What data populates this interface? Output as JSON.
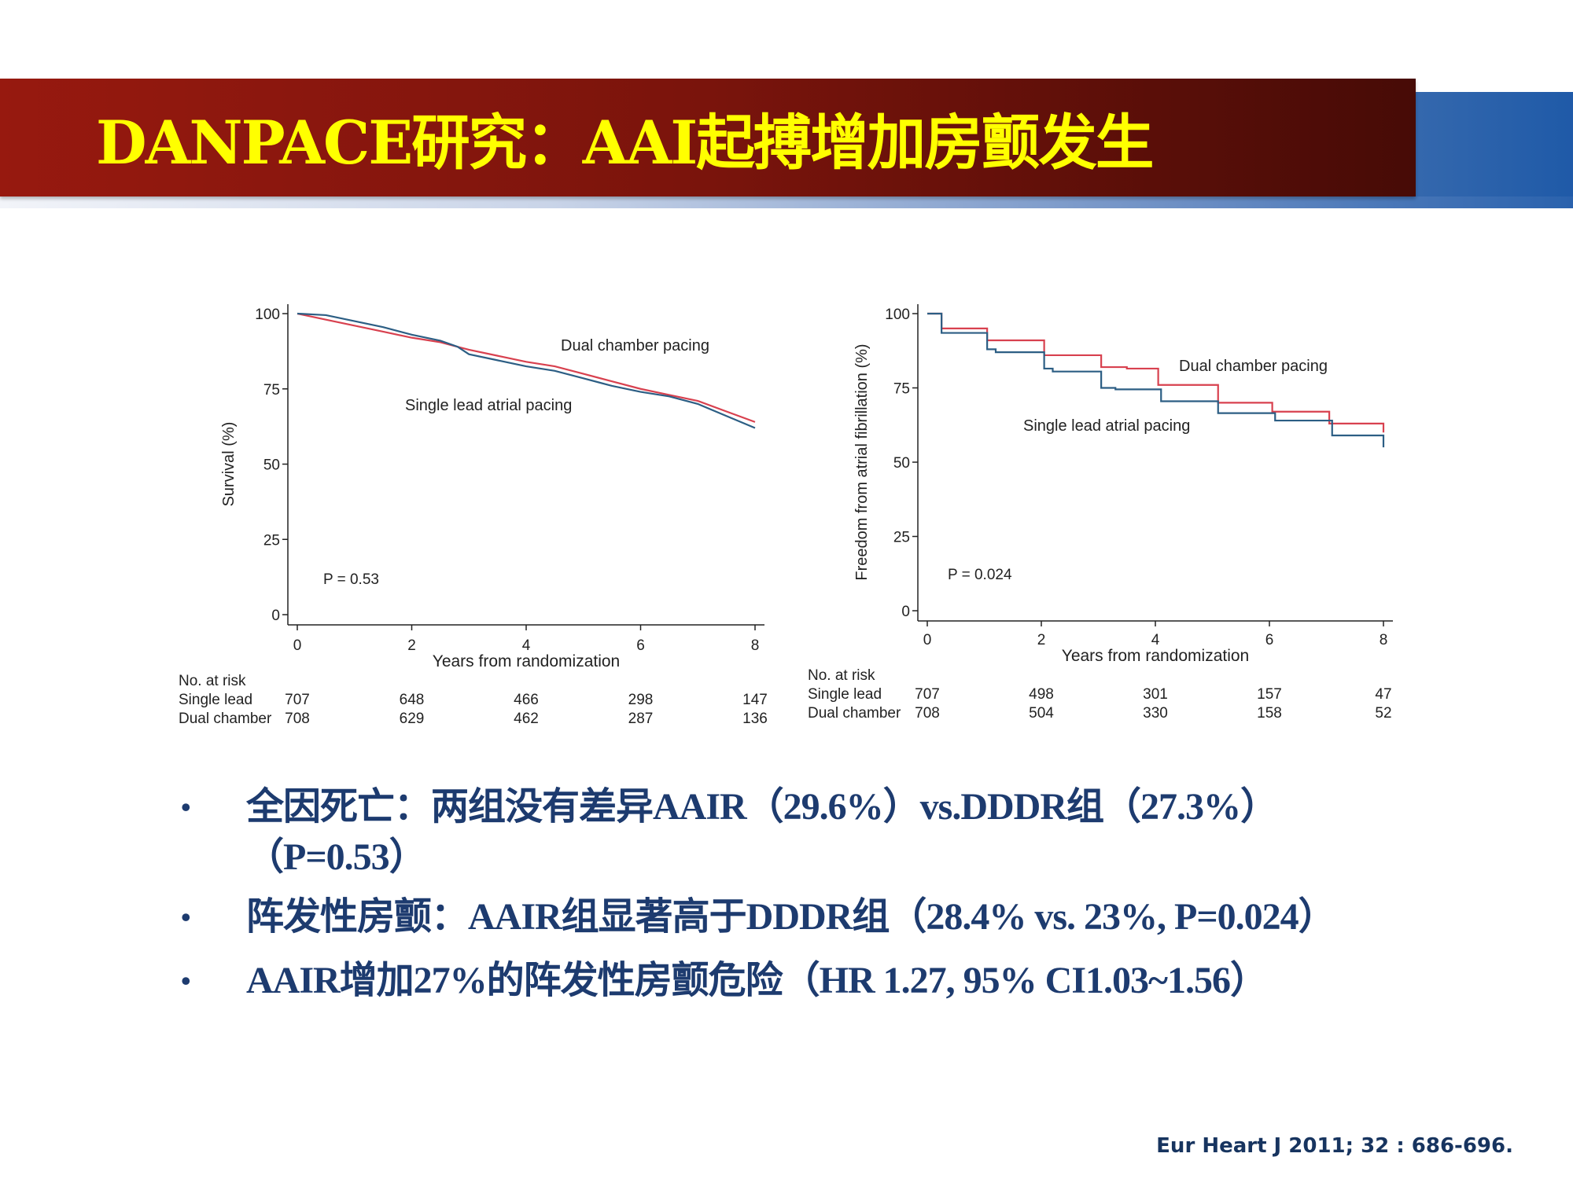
{
  "title": "DANPACE研究：AAI起搏增加房颤发生",
  "colors": {
    "dual": "#d8414f",
    "single": "#2c5e84",
    "title_text": "#ffff00",
    "bullets": "#1d3b6f"
  },
  "chart_data": [
    {
      "type": "line",
      "ylabel": "Survival (%)",
      "xlabel": "Years from randomization",
      "xticks": [
        "0",
        "2",
        "4",
        "6",
        "8"
      ],
      "yticks": [
        "0",
        "25",
        "50",
        "75",
        "100"
      ],
      "xlim": [
        0,
        8
      ],
      "ylim": [
        0,
        100
      ],
      "annotation": "P = 0.53",
      "step": false,
      "series": [
        {
          "name": "Dual chamber pacing",
          "color": "#d8414f",
          "x": [
            0,
            0.5,
            1,
            1.5,
            2,
            2.5,
            2.8,
            3,
            3.5,
            4,
            4.5,
            5,
            5.5,
            6,
            6.5,
            7,
            7.5,
            8
          ],
          "y": [
            100,
            98,
            96,
            94,
            92,
            90.5,
            89,
            88,
            86,
            84,
            82.5,
            80,
            77.5,
            75,
            73,
            71,
            67.5,
            64
          ]
        },
        {
          "name": "Single lead atrial pacing",
          "color": "#2c5e84",
          "x": [
            0,
            0.5,
            1,
            1.5,
            2,
            2.5,
            2.8,
            3,
            3.5,
            4,
            4.5,
            5,
            5.5,
            6,
            6.5,
            7,
            7.5,
            8
          ],
          "y": [
            100,
            99.5,
            97.5,
            95.5,
            93,
            91,
            89,
            86.5,
            84.5,
            82.5,
            81,
            78.5,
            76,
            74,
            72.5,
            70,
            66,
            62
          ]
        }
      ],
      "risk_table": {
        "header": "No. at risk",
        "rows": [
          {
            "label": "Single lead",
            "values": [
              "707",
              "648",
              "466",
              "298",
              "147"
            ]
          },
          {
            "label": "Dual chamber",
            "values": [
              "708",
              "629",
              "462",
              "287",
              "136"
            ]
          }
        ]
      }
    },
    {
      "type": "line",
      "ylabel": "Freedom from atrial fibrillation (%)",
      "xlabel": "Years from randomization",
      "xticks": [
        "0",
        "2",
        "4",
        "6",
        "8"
      ],
      "yticks": [
        "0",
        "25",
        "50",
        "75",
        "100"
      ],
      "xlim": [
        0,
        8
      ],
      "ylim": [
        0,
        100
      ],
      "annotation": "P = 0.024",
      "step": true,
      "series": [
        {
          "name": "Dual chamber pacing",
          "color": "#d8414f",
          "x": [
            0,
            0.25,
            1.05,
            2.05,
            3.05,
            3.5,
            4.05,
            5.1,
            6.05,
            7.05,
            8
          ],
          "y": [
            100,
            95,
            91,
            86,
            82,
            81.5,
            76,
            70,
            67,
            63,
            60
          ]
        },
        {
          "name": "Single lead atrial pacing",
          "color": "#2c5e84",
          "x": [
            0,
            0.25,
            1.05,
            1.2,
            2.05,
            2.2,
            3.05,
            3.3,
            4.1,
            5.1,
            6.1,
            7.1,
            8
          ],
          "y": [
            100,
            93.5,
            88,
            87,
            81.5,
            80.5,
            75,
            74.5,
            70.5,
            66.5,
            64,
            59,
            55
          ]
        }
      ],
      "risk_table": {
        "header": "No. at risk",
        "rows": [
          {
            "label": "Single lead",
            "values": [
              "707",
              "498",
              "301",
              "157",
              "47"
            ]
          },
          {
            "label": "Dual chamber",
            "values": [
              "708",
              "504",
              "330",
              "158",
              "52"
            ]
          }
        ]
      }
    }
  ],
  "bullets": [
    {
      "text": "全因死亡：两组没有差异AAIR（29.6%）vs.DDDR组（27.3%）",
      "cont": "（P=0.53）"
    },
    {
      "text": "阵发性房颤：AAIR组显著高于DDDR组（28.4% vs. 23%, P=0.024）"
    },
    {
      "text": "AAIR增加27%的阵发性房颤危险（HR 1.27, 95% CI1.03~1.56）"
    }
  ],
  "bullet_symbol": "•",
  "citation": "Eur Heart J 2011; 32 : 686-696."
}
